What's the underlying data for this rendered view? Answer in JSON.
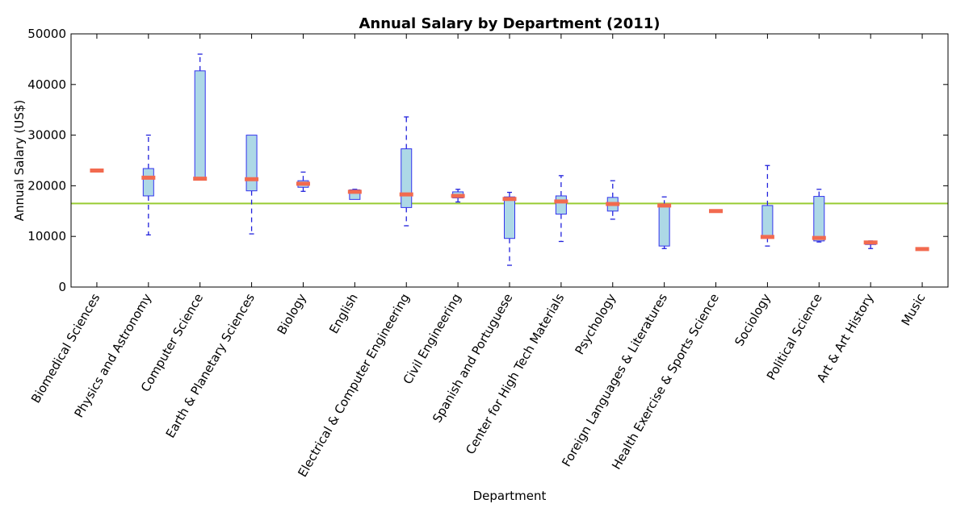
{
  "chart_data": {
    "type": "boxplot",
    "title": "Annual Salary by Department (2011)",
    "xlabel": "Department",
    "ylabel": "Annual Salary (US$)",
    "ylim": [
      0,
      50000
    ],
    "yticks": [
      "0",
      "10000",
      "20000",
      "30000",
      "40000",
      "50000"
    ],
    "reference_line": {
      "value": 16500,
      "color": "#99cc33"
    },
    "colors": {
      "box_fill": "#add8e6",
      "box_edge": "#3333ee",
      "whisker": "#2222dd",
      "median": "#f26a4f"
    },
    "grid": false,
    "categories": [
      "Biomedical Sciences",
      "Physics and Astronomy",
      "Computer Science",
      "Earth & Planetary Sciences",
      "Biology",
      "English",
      "Electrical & Computer Engineering",
      "Civil Engineering",
      "Spanish and Portuguese",
      "Center for High Tech Materials",
      "Psychology",
      "Foreign Languages & Literatures",
      "Health Exercise & Sports Science",
      "Sociology",
      "Political Science",
      "Art & Art History",
      "Music"
    ],
    "boxes": [
      {
        "min": 23000,
        "q1": 23000,
        "median": 23000,
        "q3": 23000,
        "max": 23000
      },
      {
        "min": 10300,
        "q1": 18000,
        "median": 21600,
        "q3": 23400,
        "max": 30000
      },
      {
        "min": 21400,
        "q1": 21400,
        "median": 21400,
        "q3": 42700,
        "max": 46000
      },
      {
        "min": 10500,
        "q1": 19000,
        "median": 21300,
        "q3": 30000,
        "max": 30000
      },
      {
        "min": 18900,
        "q1": 19700,
        "median": 20400,
        "q3": 21000,
        "max": 22700
      },
      {
        "min": 17300,
        "q1": 17300,
        "median": 18800,
        "q3": 19200,
        "max": 19300
      },
      {
        "min": 12100,
        "q1": 15700,
        "median": 18300,
        "q3": 27300,
        "max": 33600
      },
      {
        "min": 16800,
        "q1": 17600,
        "median": 18000,
        "q3": 18800,
        "max": 19300
      },
      {
        "min": 4300,
        "q1": 9600,
        "median": 17400,
        "q3": 17800,
        "max": 18700
      },
      {
        "min": 9000,
        "q1": 14400,
        "median": 16900,
        "q3": 18000,
        "max": 22000
      },
      {
        "min": 13400,
        "q1": 15000,
        "median": 16400,
        "q3": 17700,
        "max": 21000
      },
      {
        "min": 7600,
        "q1": 8100,
        "median": 16100,
        "q3": 16200,
        "max": 17800
      },
      {
        "min": 15000,
        "q1": 15000,
        "median": 15000,
        "q3": 15000,
        "max": 15000
      },
      {
        "min": 8100,
        "q1": 9800,
        "median": 9900,
        "q3": 16100,
        "max": 24000
      },
      {
        "min": 8900,
        "q1": 9100,
        "median": 9700,
        "q3": 17900,
        "max": 19300
      },
      {
        "min": 7600,
        "q1": 8400,
        "median": 8800,
        "q3": 9000,
        "max": 9100
      },
      {
        "min": 7500,
        "q1": 7500,
        "median": 7500,
        "q3": 7500,
        "max": 7500
      }
    ]
  }
}
